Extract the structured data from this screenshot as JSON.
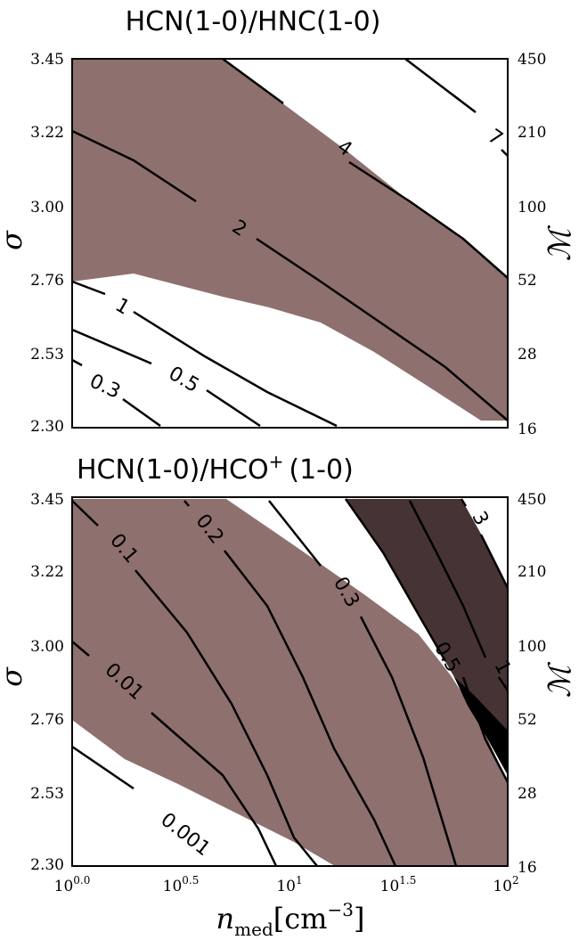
{
  "chart_data": [
    {
      "type": "contour",
      "title": "HCN(1-0)/HNC(1-0)",
      "xlabel": "n_med[cm^-3]",
      "ylabel": "σ",
      "y2label": "ℳ",
      "xlim": [
        1,
        100
      ],
      "ylim": [
        2.3,
        3.45
      ],
      "xscale": "log",
      "yticks": [
        "2.30",
        "2.53",
        "2.76",
        "3.00",
        "3.22",
        "3.45"
      ],
      "y2ticks": [
        "16",
        "28",
        "52",
        "100",
        "210",
        "450"
      ],
      "contour_levels": [
        "0.3",
        "0.5",
        "1",
        "2",
        "4",
        "7"
      ],
      "shaded_region": {
        "range": "1 to 4",
        "color": "#8e706e"
      }
    },
    {
      "type": "contour",
      "title": "HCN(1-0)/HCO+(1-0)",
      "xlabel": "n_med[cm^-3]",
      "ylabel": "σ",
      "y2label": "ℳ",
      "xlim": [
        1,
        100
      ],
      "ylim": [
        2.3,
        3.45
      ],
      "xscale": "log",
      "xticks": [
        "10^0.0",
        "10^0.5",
        "10^1",
        "10^1.5",
        "10^2"
      ],
      "yticks": [
        "2.30",
        "2.53",
        "2.76",
        "3.00",
        "3.22",
        "3.45"
      ],
      "y2ticks": [
        "16",
        "28",
        "52",
        "100",
        "210",
        "450"
      ],
      "contour_levels": [
        "0.001",
        "0.01",
        "0.1",
        "0.2",
        "0.3",
        "0.5",
        "1",
        "3"
      ],
      "shaded_regions": [
        {
          "name": "light",
          "color": "#8e706e"
        },
        {
          "name": "dark",
          "color": "#463435"
        },
        {
          "name": "overlap",
          "color": "#000000"
        }
      ]
    }
  ],
  "labels": {
    "top_title": "HCN(1-0)/HNC(1-0)",
    "bot_title_a": "HCN(1-0)/HCO",
    "bot_title_sup": "+",
    "bot_title_b": "(1-0)",
    "ylabel": "σ",
    "y2label": "ℳ",
    "xlabel_n": "n",
    "xlabel_sub": "med",
    "xlabel_unit_a": "[cm",
    "xlabel_unit_sup": "−3",
    "xlabel_unit_b": "]",
    "xtick_base": "10",
    "xtick_exps": [
      "0.0",
      "0.5",
      "1",
      "1.5",
      "2"
    ],
    "yticks": [
      "2.30",
      "2.53",
      "2.76",
      "3.00",
      "3.22",
      "3.45"
    ],
    "y2ticks": [
      "16",
      "28",
      "52",
      "100",
      "210",
      "450"
    ],
    "top_levels": [
      "4",
      "7",
      "2",
      "1",
      "0.5",
      "0.3"
    ],
    "bot_levels": [
      "0.1",
      "0.2",
      "0.3",
      "0.5",
      "3",
      "1",
      "0.01",
      "0.001"
    ]
  },
  "colors": {
    "light": "#8e706e",
    "dark": "#463435",
    "overlap": "#000000",
    "line": "#000000"
  }
}
